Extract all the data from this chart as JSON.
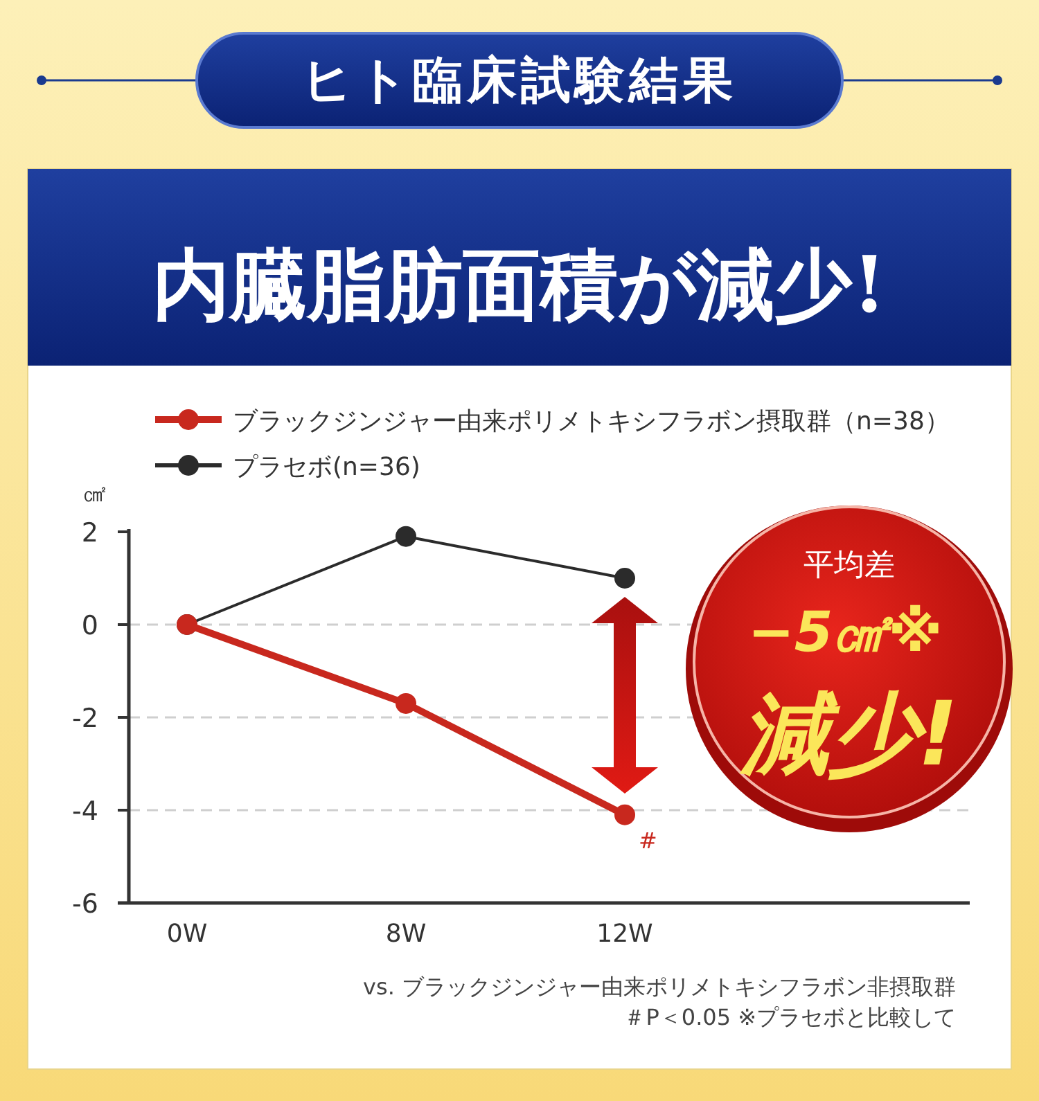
{
  "chart_data": {
    "type": "line",
    "title": "ヒト臨床試験結果",
    "subtitle": "内臓脂肪面積が減少!",
    "ylabel": "㎠",
    "categories": [
      "0W",
      "8W",
      "12W"
    ],
    "series": [
      {
        "name": "ブラックジンジャー由来ポリメトキシフラボン摂取群（n=38）",
        "color": "#c8281e",
        "values": [
          0,
          -1.7,
          -4.1
        ]
      },
      {
        "name": "プラセボ(n=36)",
        "color": "#2b2b2b",
        "values": [
          0,
          1.9,
          1.0
        ]
      }
    ],
    "ylim": [
      -6,
      2
    ],
    "yticks": [
      -6,
      -4,
      -2,
      0,
      2
    ],
    "grid": "y",
    "legend": "top",
    "marker": "circle",
    "line_style": "solid",
    "annotations": [
      {
        "text": "#",
        "x": "12W",
        "y": -4.1
      },
      "平均差",
      "−5㎠※",
      "減少!",
      "vs. ブラックジンジャー由来ポリメトキシフラボン非摂取群",
      "＃P＜0.05 ※プラセボと比較して"
    ]
  }
}
